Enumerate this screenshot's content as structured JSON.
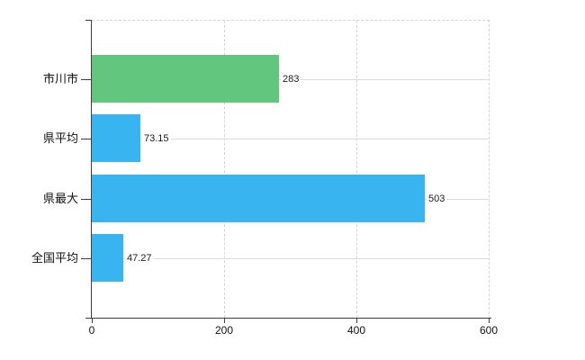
{
  "chart_data": {
    "type": "bar",
    "orientation": "horizontal",
    "title": "",
    "categories": [
      "市川市",
      "県平均",
      "県最大",
      "全国平均"
    ],
    "values": [
      283,
      73.15,
      503,
      47.27
    ],
    "value_labels": [
      "283",
      "73.15",
      "503",
      "47.27"
    ],
    "bar_colors": [
      "#63c67e",
      "#38b5f0",
      "#38b5f0",
      "#38b5f0"
    ],
    "xlim": [
      0,
      600
    ],
    "xticks": [
      0,
      200,
      400,
      600
    ],
    "xtick_labels": [
      "0",
      "200",
      "400",
      "600"
    ],
    "legend": "none",
    "grid": {
      "vertical_dashed_at": [
        200,
        400,
        600
      ],
      "horizontal_at_category_centers": true,
      "top_border_dashed": true
    }
  },
  "colors": {
    "bar_green": "#63c67e",
    "bar_blue": "#38b5f0",
    "background": "#ffffff"
  }
}
